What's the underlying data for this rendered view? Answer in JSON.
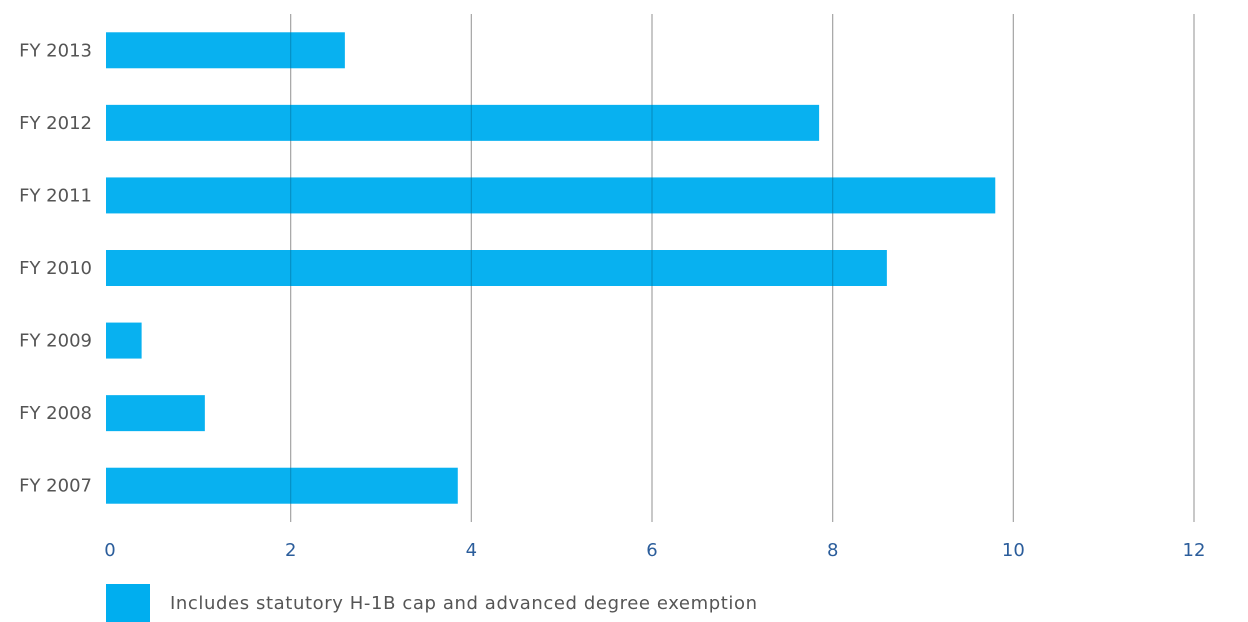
{
  "chart_data": {
    "type": "bar",
    "orientation": "horizontal",
    "categories": [
      "FY 2013",
      "FY 2012",
      "FY 2011",
      "FY 2010",
      "FY 2009",
      "FY 2008",
      "FY 2007"
    ],
    "series": [
      {
        "name": "Includes statutory H-1B cap and advanced degree exemption",
        "color": "#00aeef",
        "values": [
          2.6,
          7.85,
          9.8,
          8.6,
          0.35,
          1.05,
          3.85
        ]
      }
    ],
    "x_ticks": [
      0,
      2,
      4,
      6,
      8,
      10,
      12
    ],
    "xlim": [
      0,
      12
    ],
    "grid": true,
    "legend_position": "bottom-left",
    "colors": {
      "bar": "#00aeef",
      "grid": "#c8c8c8",
      "tick_label": "#2b5d9b",
      "category_label": "#555555"
    }
  },
  "legend": {
    "label": "Includes statutory H-1B cap and advanced degree exemption"
  }
}
